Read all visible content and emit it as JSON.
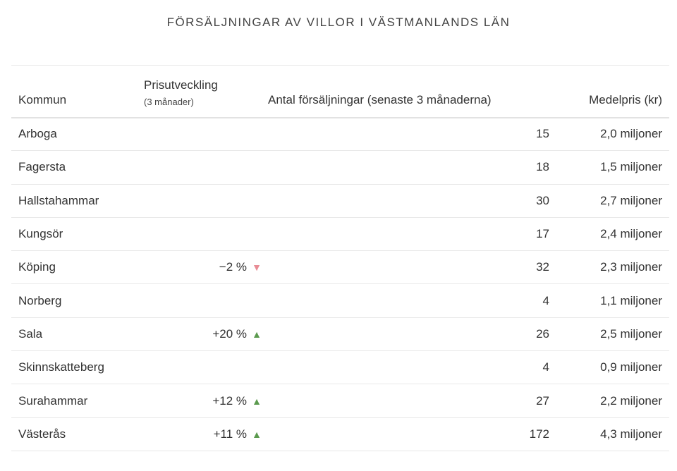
{
  "chart_data": {
    "type": "table",
    "title": "FÖRSÄLJNINGAR AV VILLOR I VÄSTMANLANDS LÄN",
    "columns": {
      "kommun": "Kommun",
      "change": "Prisutveckling",
      "change_sub": "(3 månader)",
      "count": "Antal försäljningar (senaste 3 månaderna)",
      "price": "Medelpris (kr)"
    },
    "rows": [
      {
        "kommun": "Arboga",
        "change": "",
        "direction": "",
        "count": "15",
        "price": "2,0 miljoner"
      },
      {
        "kommun": "Fagersta",
        "change": "",
        "direction": "",
        "count": "18",
        "price": "1,5 miljoner"
      },
      {
        "kommun": "Hallstahammar",
        "change": "",
        "direction": "",
        "count": "30",
        "price": "2,7 miljoner"
      },
      {
        "kommun": "Kungsör",
        "change": "",
        "direction": "",
        "count": "17",
        "price": "2,4 miljoner"
      },
      {
        "kommun": "Köping",
        "change": "−2 %",
        "direction": "down",
        "count": "32",
        "price": "2,3 miljoner"
      },
      {
        "kommun": "Norberg",
        "change": "",
        "direction": "",
        "count": "4",
        "price": "1,1 miljoner"
      },
      {
        "kommun": "Sala",
        "change": "+20 %",
        "direction": "up",
        "count": "26",
        "price": "2,5 miljoner"
      },
      {
        "kommun": "Skinnskatteberg",
        "change": "",
        "direction": "",
        "count": "4",
        "price": "0,9 miljoner"
      },
      {
        "kommun": "Surahammar",
        "change": "+12 %",
        "direction": "up",
        "count": "27",
        "price": "2,2 miljoner"
      },
      {
        "kommun": "Västerås",
        "change": "+11 %",
        "direction": "up",
        "count": "172",
        "price": "4,3 miljoner"
      }
    ],
    "colors": {
      "up": "#5b9a4e",
      "down": "#e88c95"
    }
  }
}
